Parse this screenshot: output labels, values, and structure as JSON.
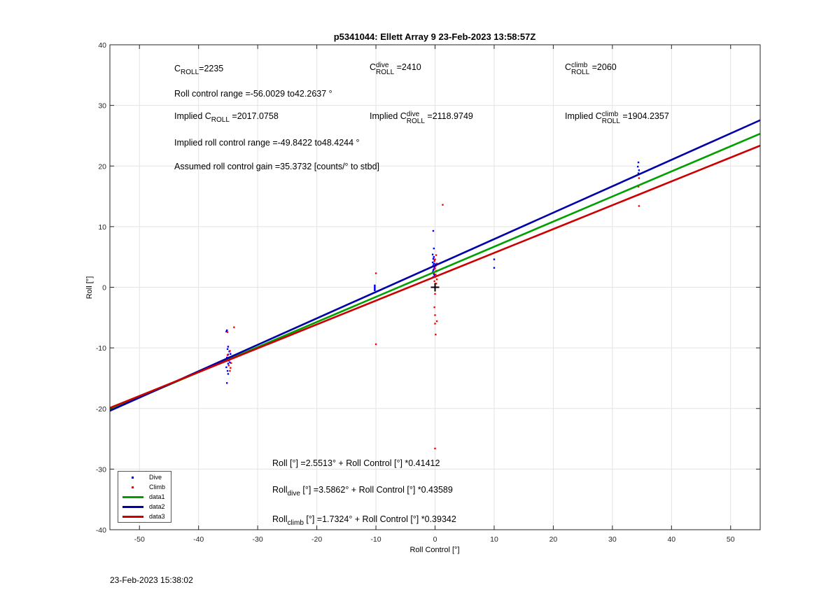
{
  "footer_timestamp": "23-Feb-2023 15:38:02",
  "colors": {
    "dive": "#0000ff",
    "climb": "#ff0000",
    "data1": "#00a000",
    "data2": "#0000a8",
    "data3": "#cc0000",
    "marker": "#000000"
  },
  "annotations": {
    "c_roll": {
      "main": "C",
      "sub": "ROLL",
      "rest": "=2235"
    },
    "c_roll_dive": {
      "main": "C",
      "sup": "dive",
      "sub": "ROLL",
      "rest": " =2410"
    },
    "c_roll_climb": {
      "main": "C",
      "sup": "climb",
      "sub": "ROLL",
      "rest": " =2060"
    },
    "roll_control_range": "Roll control range =-56.0029 to42.2637 °",
    "implied_c_roll": {
      "prefix": "Implied C",
      "sub": "ROLL",
      "rest": " =2017.0758"
    },
    "implied_c_roll_dive": {
      "prefix": "Implied C",
      "sup": "dive",
      "sub": "ROLL",
      "rest": " =2118.9749"
    },
    "implied_c_roll_climb": {
      "prefix": "Implied C",
      "sup": "climb",
      "sub": "ROLL",
      "rest": " =1904.2357"
    },
    "implied_range": "Implied roll control range =-49.8422 to48.4244 °",
    "assumed_gain": "Assumed roll control gain =35.3732 [counts/° to stbd]",
    "eq_all": "Roll [°] =2.5513° + Roll Control [°] *0.41412",
    "eq_dive": {
      "main": "Roll",
      "sub": "dive",
      "rest": " [°] =3.5862° + Roll Control [°] *0.43589"
    },
    "eq_climb": {
      "main": "Roll",
      "sub": "climb",
      "rest": " [°] =1.7324° + Roll Control [°] *0.39342"
    }
  },
  "chart_data": {
    "type": "scatter",
    "title": "p5341044: Ellett Array 9 23-Feb-2023 13:58:57Z",
    "xlabel": "Roll Control [°]",
    "ylabel": "Roll [°]",
    "xlim": [
      -55,
      55
    ],
    "ylim": [
      -40,
      40
    ],
    "xticks": [
      -50,
      -40,
      -30,
      -20,
      -10,
      0,
      10,
      20,
      30,
      40,
      50
    ],
    "yticks": [
      -40,
      -30,
      -20,
      -10,
      0,
      10,
      20,
      30,
      40
    ],
    "grid": true,
    "legend_placement": "bottom-left",
    "series": [
      {
        "name": "Dive",
        "kind": "points",
        "color": "#0000ff",
        "points": [
          [
            -35.2,
            -15.8
          ],
          [
            -35.0,
            -14.3
          ],
          [
            -35.1,
            -13.8
          ],
          [
            -35.3,
            -13.2
          ],
          [
            -35.0,
            -12.6
          ],
          [
            -34.9,
            -12.1
          ],
          [
            -35.2,
            -11.6
          ],
          [
            -35.0,
            -11.1
          ],
          [
            -34.8,
            -10.6
          ],
          [
            -35.1,
            -10.2
          ],
          [
            -35.0,
            -9.8
          ],
          [
            -35.3,
            -7.3
          ],
          [
            -35.2,
            -7.1
          ],
          [
            -34.6,
            -11.0
          ],
          [
            -34.7,
            -12.4
          ],
          [
            -10.2,
            -0.5
          ],
          [
            -10.2,
            -0.3
          ],
          [
            -10.2,
            -0.1
          ],
          [
            -10.2,
            0.1
          ],
          [
            -10.2,
            0.3
          ],
          [
            -0.3,
            9.3
          ],
          [
            -0.2,
            6.4
          ],
          [
            -0.4,
            5.4
          ],
          [
            -0.2,
            5.0
          ],
          [
            -0.3,
            4.7
          ],
          [
            -0.1,
            4.4
          ],
          [
            -0.4,
            4.1
          ],
          [
            -0.2,
            3.9
          ],
          [
            -0.3,
            3.6
          ],
          [
            -0.1,
            3.3
          ],
          [
            -0.2,
            3.0
          ],
          [
            -0.3,
            2.8
          ],
          [
            -0.4,
            2.5
          ],
          [
            -0.2,
            2.2
          ],
          [
            -0.1,
            2.0
          ],
          [
            -0.3,
            1.7
          ],
          [
            0.1,
            3.8
          ],
          [
            0.2,
            2.6
          ],
          [
            10.0,
            4.6
          ],
          [
            10.0,
            3.2
          ],
          [
            34.4,
            20.6
          ],
          [
            34.3,
            19.9
          ],
          [
            34.5,
            19.3
          ],
          [
            34.4,
            18.8
          ]
        ]
      },
      {
        "name": "Climb",
        "kind": "points",
        "color": "#ff0000",
        "points": [
          [
            -34.0,
            -6.6
          ],
          [
            -35.1,
            -7.4
          ],
          [
            -34.7,
            -13.8
          ],
          [
            -34.6,
            -13.3
          ],
          [
            -34.9,
            -12.9
          ],
          [
            -34.5,
            -12.5
          ],
          [
            -35.3,
            -12.0
          ],
          [
            -34.8,
            -11.6
          ],
          [
            -35.1,
            -11.2
          ],
          [
            -34.7,
            -10.5
          ],
          [
            -10.0,
            2.3
          ],
          [
            -10.0,
            -9.4
          ],
          [
            1.3,
            13.6
          ],
          [
            0.2,
            5.3
          ],
          [
            0.0,
            4.6
          ],
          [
            -0.1,
            4.3
          ],
          [
            0.3,
            3.9
          ],
          [
            0.1,
            3.5
          ],
          [
            0.0,
            3.1
          ],
          [
            0.2,
            2.7
          ],
          [
            -0.2,
            2.4
          ],
          [
            0.1,
            2.1
          ],
          [
            0.0,
            1.7
          ],
          [
            0.3,
            1.3
          ],
          [
            -0.1,
            1.0
          ],
          [
            0.2,
            0.6
          ],
          [
            0.0,
            -1.1
          ],
          [
            -0.1,
            -3.3
          ],
          [
            0.0,
            -4.6
          ],
          [
            0.3,
            -5.6
          ],
          [
            0.0,
            -6.0
          ],
          [
            0.1,
            -7.8
          ],
          [
            0.0,
            -26.6
          ],
          [
            34.5,
            18.0
          ],
          [
            34.4,
            16.6
          ],
          [
            34.3,
            15.2
          ],
          [
            34.5,
            13.4
          ]
        ]
      },
      {
        "name": "data1",
        "kind": "line",
        "color": "#00a000",
        "intercept": 2.5513,
        "slope": 0.41412
      },
      {
        "name": "data2",
        "kind": "line",
        "color": "#0000a8",
        "intercept": 3.5862,
        "slope": 0.43589
      },
      {
        "name": "data3",
        "kind": "line",
        "color": "#cc0000",
        "intercept": 1.7324,
        "slope": 0.39342
      }
    ],
    "marker": {
      "shape": "plus",
      "x": 0,
      "y": 0
    }
  }
}
